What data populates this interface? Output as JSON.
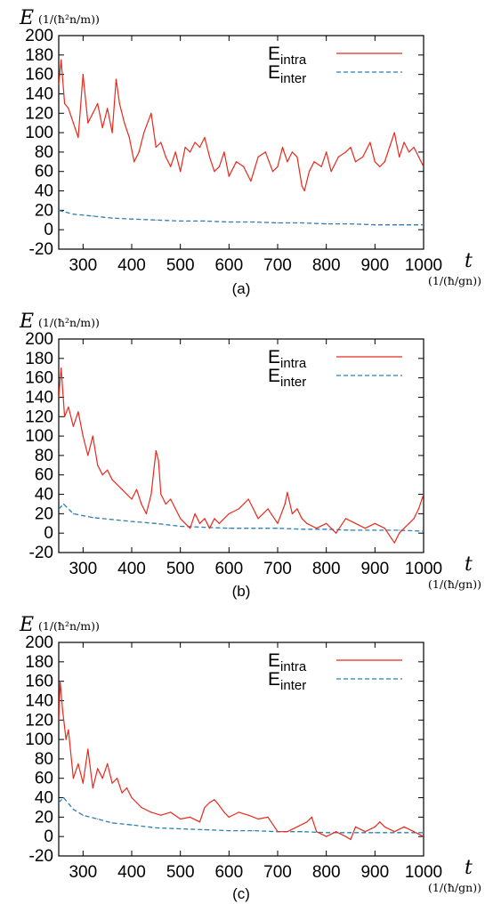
{
  "chart_data": [
    {
      "type": "line",
      "panel_label": "(a)",
      "y_axis": {
        "symbol": "E",
        "unit": "(1/(ħ²n/m))"
      },
      "x_axis": {
        "symbol": "t",
        "unit": "(1/(ħ/gn))"
      },
      "xlim": [
        250,
        1000
      ],
      "ylim": [
        -20,
        200
      ],
      "xticks": [
        300,
        400,
        500,
        600,
        700,
        800,
        900,
        1000
      ],
      "yticks": [
        -20,
        0,
        20,
        40,
        60,
        80,
        100,
        120,
        140,
        160,
        180,
        200
      ],
      "legend_position": "top-right",
      "series": [
        {
          "name": "E",
          "subscript": "intra",
          "color": "#e8291c",
          "style": "solid",
          "x": [
            250,
            255,
            262,
            270,
            280,
            290,
            300,
            310,
            320,
            330,
            340,
            350,
            360,
            368,
            375,
            385,
            395,
            405,
            415,
            425,
            440,
            450,
            460,
            470,
            480,
            490,
            500,
            510,
            520,
            530,
            540,
            550,
            560,
            570,
            580,
            590,
            600,
            615,
            630,
            645,
            660,
            675,
            690,
            700,
            710,
            720,
            730,
            740,
            750,
            755,
            765,
            775,
            790,
            800,
            810,
            825,
            840,
            850,
            860,
            875,
            890,
            900,
            910,
            920,
            930,
            940,
            950,
            960,
            970,
            980,
            990,
            1000
          ],
          "y": [
            150,
            175,
            130,
            125,
            110,
            95,
            160,
            110,
            120,
            130,
            105,
            125,
            100,
            155,
            130,
            110,
            95,
            70,
            80,
            100,
            120,
            85,
            90,
            75,
            65,
            80,
            60,
            85,
            80,
            90,
            85,
            95,
            75,
            60,
            65,
            80,
            55,
            70,
            65,
            50,
            75,
            80,
            60,
            65,
            85,
            70,
            80,
            75,
            45,
            40,
            60,
            70,
            65,
            80,
            60,
            75,
            80,
            85,
            70,
            75,
            90,
            70,
            65,
            70,
            85,
            100,
            75,
            90,
            80,
            85,
            75,
            65
          ]
        },
        {
          "name": "E",
          "subscript": "inter",
          "color": "#2d7eb3",
          "style": "dashed",
          "x": [
            250,
            280,
            320,
            360,
            400,
            450,
            500,
            550,
            600,
            650,
            700,
            750,
            800,
            850,
            900,
            950,
            1000
          ],
          "y": [
            20,
            16,
            14,
            12,
            11,
            10,
            9,
            9,
            8,
            8,
            7,
            7,
            6,
            6,
            5,
            5,
            5
          ]
        }
      ]
    },
    {
      "type": "line",
      "panel_label": "(b)",
      "y_axis": {
        "symbol": "E",
        "unit": "(1/(ħ²n/m))"
      },
      "x_axis": {
        "symbol": "t",
        "unit": "(1/(ħ/gn))"
      },
      "xlim": [
        250,
        1000
      ],
      "ylim": [
        -20,
        200
      ],
      "xticks": [
        300,
        400,
        500,
        600,
        700,
        800,
        900,
        1000
      ],
      "yticks": [
        -20,
        0,
        20,
        40,
        60,
        80,
        100,
        120,
        140,
        160,
        180,
        200
      ],
      "legend_position": "top-right",
      "series": [
        {
          "name": "E",
          "subscript": "intra",
          "color": "#e8291c",
          "style": "solid",
          "x": [
            250,
            255,
            262,
            270,
            280,
            290,
            300,
            310,
            320,
            330,
            340,
            350,
            360,
            370,
            380,
            390,
            400,
            410,
            420,
            430,
            440,
            450,
            455,
            460,
            470,
            480,
            490,
            500,
            510,
            520,
            530,
            540,
            550,
            560,
            570,
            580,
            600,
            620,
            640,
            660,
            680,
            700,
            715,
            720,
            730,
            740,
            750,
            760,
            780,
            800,
            820,
            840,
            860,
            880,
            900,
            920,
            940,
            950,
            960,
            970,
            980,
            990,
            1000
          ],
          "y": [
            140,
            170,
            120,
            130,
            110,
            125,
            100,
            80,
            100,
            70,
            60,
            65,
            55,
            50,
            45,
            40,
            35,
            45,
            30,
            20,
            40,
            85,
            75,
            40,
            30,
            35,
            25,
            15,
            10,
            5,
            20,
            10,
            15,
            5,
            15,
            10,
            20,
            25,
            35,
            15,
            25,
            10,
            30,
            42,
            20,
            25,
            15,
            10,
            5,
            10,
            0,
            15,
            10,
            5,
            10,
            5,
            -10,
            0,
            5,
            10,
            15,
            25,
            40
          ]
        },
        {
          "name": "E",
          "subscript": "inter",
          "color": "#2d7eb3",
          "style": "dashed",
          "x": [
            250,
            260,
            280,
            320,
            360,
            400,
            450,
            500,
            550,
            600,
            650,
            700,
            750,
            800,
            850,
            900,
            950,
            1000
          ],
          "y": [
            25,
            30,
            20,
            16,
            14,
            12,
            10,
            7,
            6,
            5,
            5,
            5,
            4,
            4,
            3,
            3,
            3,
            2
          ]
        }
      ]
    },
    {
      "type": "line",
      "panel_label": "(c)",
      "y_axis": {
        "symbol": "E",
        "unit": "(1/(ħ²n/m))"
      },
      "x_axis": {
        "symbol": "t",
        "unit": "(1/(ħ/gn))"
      },
      "xlim": [
        250,
        1000
      ],
      "ylim": [
        -20,
        200
      ],
      "xticks": [
        300,
        400,
        500,
        600,
        700,
        800,
        900,
        1000
      ],
      "yticks": [
        -20,
        0,
        20,
        40,
        60,
        80,
        100,
        120,
        140,
        160,
        180,
        200
      ],
      "legend_position": "top-right",
      "series": [
        {
          "name": "E",
          "subscript": "intra",
          "color": "#e8291c",
          "style": "solid",
          "x": [
            250,
            253,
            258,
            265,
            270,
            280,
            290,
            300,
            310,
            320,
            330,
            340,
            350,
            360,
            370,
            380,
            390,
            400,
            420,
            440,
            460,
            480,
            500,
            520,
            540,
            550,
            560,
            570,
            580,
            590,
            600,
            620,
            640,
            660,
            680,
            700,
            720,
            740,
            760,
            770,
            780,
            800,
            820,
            840,
            850,
            860,
            880,
            900,
            910,
            920,
            940,
            960,
            980,
            1000
          ],
          "y": [
            120,
            160,
            130,
            100,
            110,
            60,
            75,
            55,
            90,
            50,
            70,
            60,
            75,
            55,
            60,
            45,
            50,
            40,
            30,
            25,
            22,
            25,
            18,
            20,
            15,
            30,
            35,
            38,
            32,
            25,
            20,
            25,
            22,
            18,
            20,
            5,
            5,
            10,
            15,
            20,
            5,
            0,
            5,
            0,
            -3,
            10,
            5,
            10,
            15,
            10,
            5,
            10,
            5,
            0
          ]
        },
        {
          "name": "E",
          "subscript": "inter",
          "color": "#2d7eb3",
          "style": "dashed",
          "x": [
            250,
            260,
            280,
            300,
            330,
            360,
            400,
            450,
            500,
            550,
            600,
            650,
            700,
            750,
            800,
            850,
            900,
            950,
            1000
          ],
          "y": [
            35,
            40,
            28,
            22,
            18,
            14,
            12,
            9,
            8,
            7,
            6,
            6,
            5,
            5,
            4,
            4,
            4,
            4,
            4
          ]
        }
      ]
    }
  ]
}
